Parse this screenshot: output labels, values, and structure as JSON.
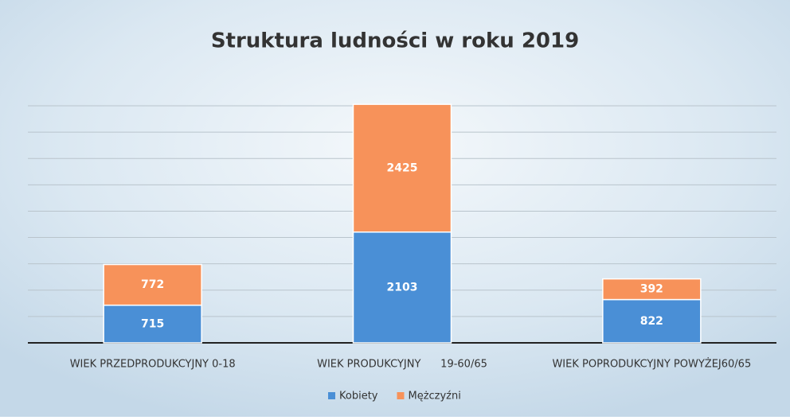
{
  "chart_data": {
    "type": "stacked_bar",
    "title": "Struktura ludności w roku 2019",
    "categories": [
      "WIEK PRZEDPRODUKCYJNY 0-18",
      "WIEK PRODUKCYJNY      19-60/65",
      "WIEK POPRODUKCYJNY POWYŻEJ60/65"
    ],
    "series": [
      {
        "name": "Kobiety",
        "color": "#4a8fd6",
        "values": [
          715,
          2103,
          822
        ]
      },
      {
        "name": "Mężczyźni",
        "color": "#f7925a",
        "values": [
          772,
          2425,
          392
        ]
      }
    ],
    "ylim": [
      0,
      4500
    ],
    "yticks": [
      0,
      500,
      1000,
      1500,
      2000,
      2500,
      3000,
      3500,
      4000,
      4500
    ],
    "grid": true,
    "legend": "bottom"
  }
}
